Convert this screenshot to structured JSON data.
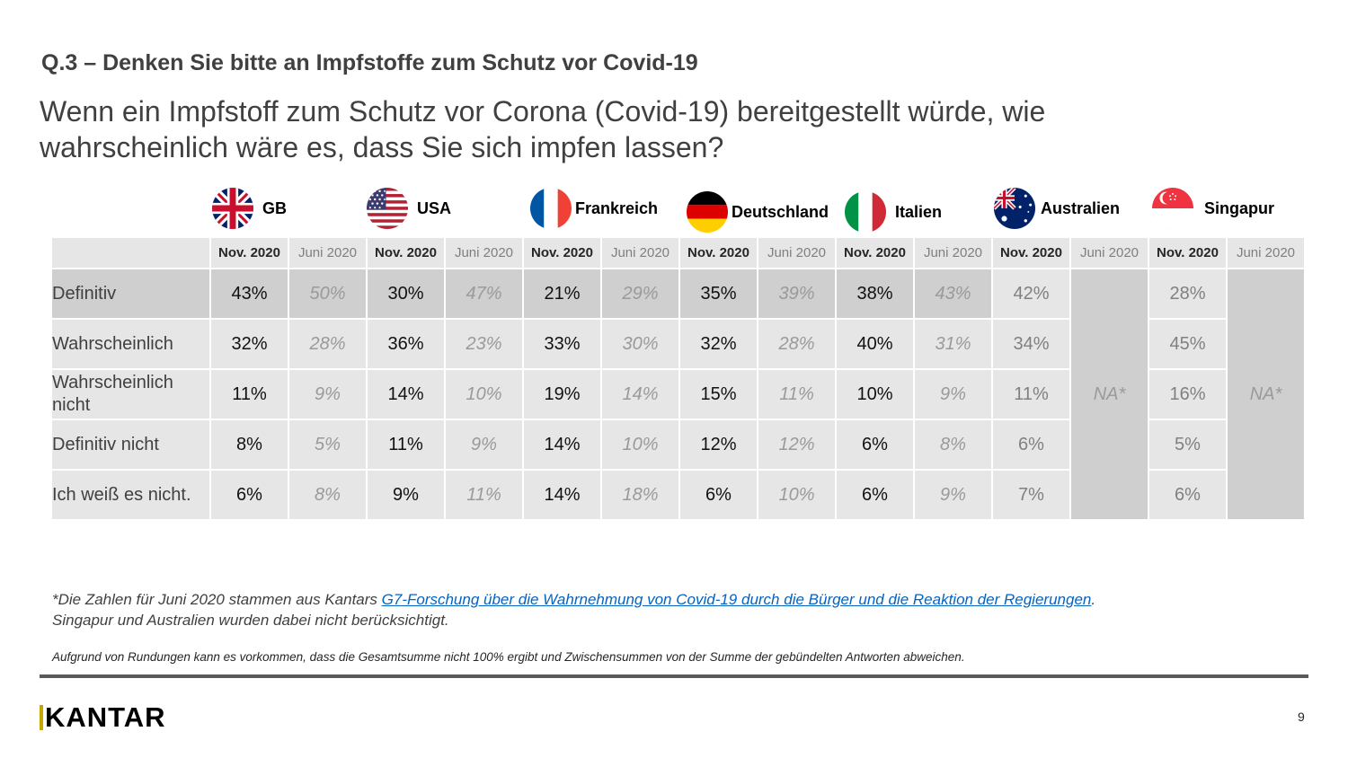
{
  "header": {
    "question": "Q.3 – Denken Sie bitte an Impfstoffe zum Schutz vor Covid-19",
    "headline": "Wenn ein Impfstoff zum Schutz vor Corona (Covid-19) bereitgestellt würde, wie wahrscheinlich wäre es, dass Sie sich impfen lassen?"
  },
  "countries": [
    {
      "name": "GB",
      "flag_icon": "uk-flag-icon"
    },
    {
      "name": "USA",
      "flag_icon": "usa-flag-icon"
    },
    {
      "name": "Frankreich",
      "flag_icon": "france-flag-icon"
    },
    {
      "name": "Deutschland",
      "flag_icon": "germany-flag-icon"
    },
    {
      "name": "Italien",
      "flag_icon": "italy-flag-icon"
    },
    {
      "name": "Australien",
      "flag_icon": "australia-flag-icon"
    },
    {
      "name": "Singapur",
      "flag_icon": "singapore-flag-icon"
    }
  ],
  "table": {
    "col_nov": "Nov. 2020",
    "col_jun": "Juni 2020",
    "na_label": "NA*",
    "rows": [
      {
        "label": "Definitiv",
        "gb": [
          "43%",
          "50%"
        ],
        "usa": [
          "30%",
          "47%"
        ],
        "fr": [
          "21%",
          "29%"
        ],
        "de": [
          "35%",
          "39%"
        ],
        "it": [
          "38%",
          "43%"
        ],
        "au": "42%",
        "sg": "28%"
      },
      {
        "label": "Wahrscheinlich",
        "gb": [
          "32%",
          "28%"
        ],
        "usa": [
          "36%",
          "23%"
        ],
        "fr": [
          "33%",
          "30%"
        ],
        "de": [
          "32%",
          "28%"
        ],
        "it": [
          "40%",
          "31%"
        ],
        "au": "34%",
        "sg": "45%"
      },
      {
        "label": "Wahrscheinlich nicht",
        "gb": [
          "11%",
          "9%"
        ],
        "usa": [
          "14%",
          "10%"
        ],
        "fr": [
          "19%",
          "14%"
        ],
        "de": [
          "15%",
          "11%"
        ],
        "it": [
          "10%",
          "9%"
        ],
        "au": "11%",
        "sg": "16%"
      },
      {
        "label": "Definitiv nicht",
        "gb": [
          "8%",
          "5%"
        ],
        "usa": [
          "11%",
          "9%"
        ],
        "fr": [
          "14%",
          "10%"
        ],
        "de": [
          "12%",
          "12%"
        ],
        "it": [
          "6%",
          "8%"
        ],
        "au": "6%",
        "sg": "5%"
      },
      {
        "label": "Ich weiß es nicht.",
        "gb": [
          "6%",
          "8%"
        ],
        "usa": [
          "9%",
          "11%"
        ],
        "fr": [
          "14%",
          "18%"
        ],
        "de": [
          "6%",
          "10%"
        ],
        "it": [
          "6%",
          "9%"
        ],
        "au": "7%",
        "sg": "6%"
      }
    ]
  },
  "footnote": {
    "prefix": "*Die Zahlen für Juni 2020 stammen aus Kantars ",
    "link": "G7-Forschung über die Wahrnehmung von Covid-19 durch die Bürger und die Reaktion der Regierungen",
    "suffix": ".",
    "line2": "Singapur und Australien wurden dabei nicht berücksichtigt."
  },
  "rounding_note": "Aufgrund von Rundungen kann es vorkommen, dass die Gesamtsumme nicht 100% ergibt und Zwischensummen von der Summe der gebündelten Antworten abweichen.",
  "footer": {
    "logo": "KANTAR",
    "page_number": "9"
  },
  "colors": {
    "accent_gold": "#c8a600",
    "link_blue": "#0563c1",
    "cell_grey": "#e6e6e6",
    "dark_grey": "#cfcfcf"
  }
}
